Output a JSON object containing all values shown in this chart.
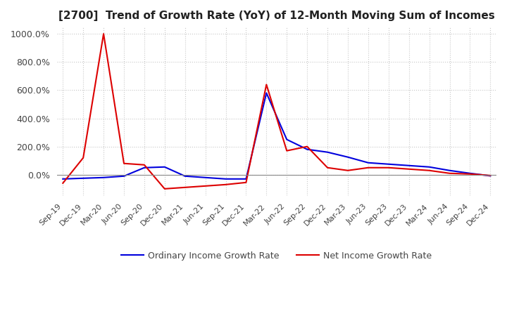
{
  "title": "[2700]  Trend of Growth Rate (YoY) of 12-Month Moving Sum of Incomes",
  "ylim_min": -150,
  "ylim_max": 1050,
  "yticks": [
    0,
    200,
    400,
    600,
    800,
    1000
  ],
  "ytick_labels": [
    "0.0%",
    "200.0%",
    "400.0%",
    "600.0%",
    "800.0%",
    "1000.0%"
  ],
  "background_color": "#ffffff",
  "grid_color": "#c8c8c8",
  "ordinary_color": "#0000dd",
  "net_color": "#dd0000",
  "legend_ordinary": "Ordinary Income Growth Rate",
  "legend_net": "Net Income Growth Rate",
  "x_dates": [
    "Sep-19",
    "Dec-19",
    "Mar-20",
    "Jun-20",
    "Sep-20",
    "Dec-20",
    "Mar-21",
    "Jun-21",
    "Sep-21",
    "Dec-21",
    "Mar-22",
    "Jun-22",
    "Sep-22",
    "Dec-22",
    "Mar-23",
    "Jun-23",
    "Sep-23",
    "Dec-23",
    "Mar-24",
    "Jun-24",
    "Sep-24",
    "Dec-24"
  ],
  "ordinary_values": [
    -30,
    -25,
    -20,
    -10,
    50,
    55,
    -10,
    -20,
    -30,
    -30,
    580,
    250,
    180,
    160,
    125,
    85,
    75,
    65,
    55,
    30,
    10,
    -8
  ],
  "net_values": [
    -60,
    120,
    1000,
    80,
    70,
    -100,
    -90,
    -80,
    -70,
    -55,
    640,
    170,
    200,
    50,
    30,
    50,
    50,
    40,
    30,
    10,
    5,
    -5
  ]
}
